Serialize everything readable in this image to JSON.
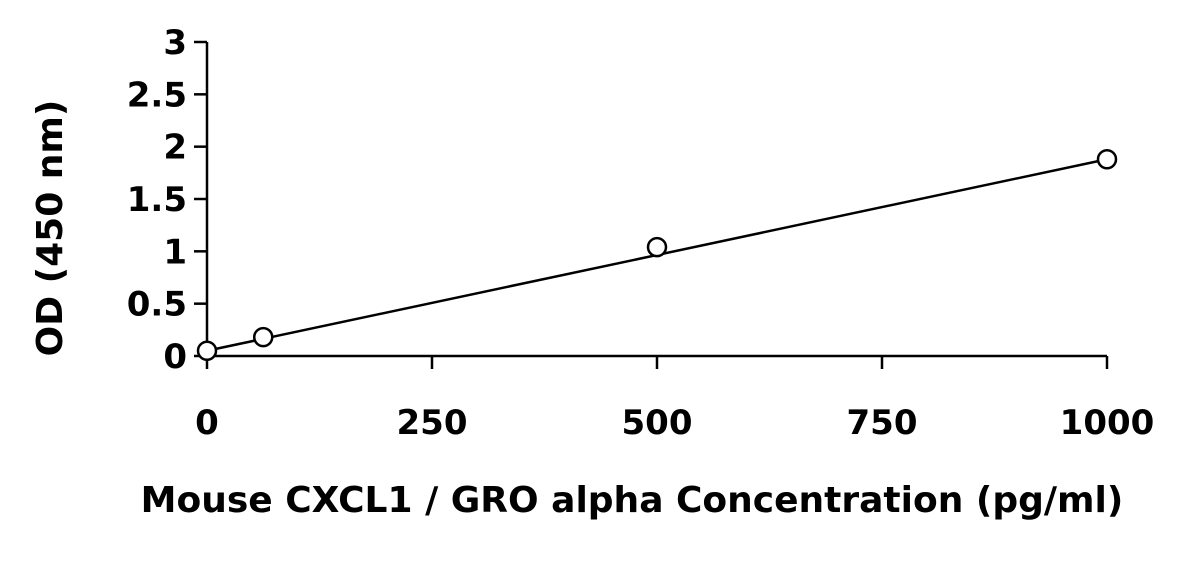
{
  "chart_data": {
    "type": "scatter",
    "title": "",
    "xlabel": "Mouse CXCL1 / GRO alpha Concentration (pg/ml)",
    "ylabel": "OD (450 nm)",
    "xlim": [
      0,
      1000
    ],
    "ylim": [
      0,
      3
    ],
    "x_ticks": [
      0,
      250,
      500,
      750,
      1000
    ],
    "x_tick_labels": [
      "0",
      "250",
      "500",
      "750",
      "1000"
    ],
    "y_ticks": [
      0,
      0.5,
      1,
      1.5,
      2,
      2.5,
      3
    ],
    "y_tick_labels": [
      "0",
      "0.5",
      "1",
      "1.5",
      "2",
      "2.5",
      "3"
    ],
    "grid": false,
    "legend": "none",
    "series": [
      {
        "x": [
          0,
          62.5,
          500,
          1000
        ],
        "y": [
          0.05,
          0.18,
          1.04,
          1.88
        ],
        "marker": "open-circle",
        "color": "#000000"
      }
    ],
    "fit_line": {
      "type": "linear",
      "x": [
        0,
        1000
      ],
      "y": [
        0.05,
        1.88
      ],
      "color": "#000000"
    }
  }
}
